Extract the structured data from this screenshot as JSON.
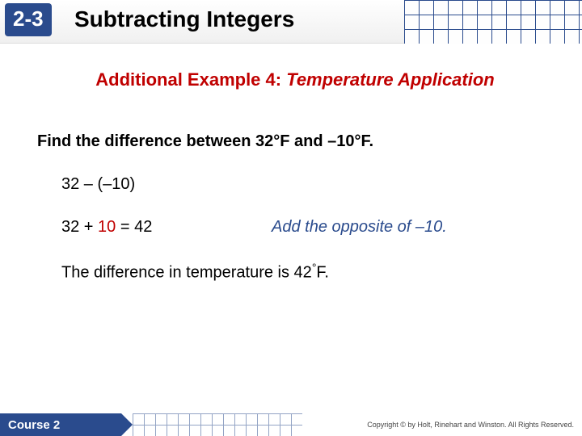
{
  "header": {
    "chapter": "2-3",
    "title": "Subtracting Integers"
  },
  "subtitle": {
    "prefix": "Additional Example 4: ",
    "ital": "Temperature Application"
  },
  "prompt": "Find the difference between 32°F and –10°F.",
  "step1": "32 – (–10)",
  "step2": {
    "pre": "32 + ",
    "red": "10",
    "post": " = 42",
    "note": "Add the opposite of –10."
  },
  "result": {
    "pre": "The difference in temperature is 42",
    "deg": "°",
    "post": "F."
  },
  "footer": {
    "course": "Course 2",
    "copyright": "Copyright © by Holt, Rinehart and Winston. All Rights Reserved."
  }
}
